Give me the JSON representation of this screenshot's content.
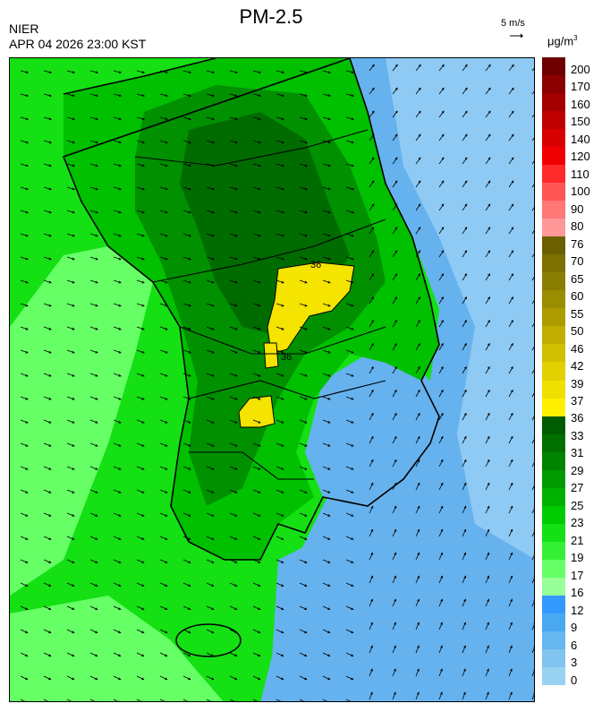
{
  "header": {
    "title": "PM-2.5",
    "agency": "NIER",
    "timestamp": "APR 04 2026 23:00 KST"
  },
  "wind_legend": {
    "label": "5 m/s",
    "icon": "wind-reference-arrow-icon"
  },
  "units": {
    "main": "μg/m",
    "exponent": "3"
  },
  "legend": {
    "labels": [
      "200",
      "170",
      "160",
      "150",
      "140",
      "120",
      "110",
      "100",
      "90",
      "80",
      "76",
      "70",
      "65",
      "60",
      "55",
      "50",
      "46",
      "42",
      "39",
      "37",
      "36",
      "33",
      "31",
      "29",
      "27",
      "25",
      "23",
      "21",
      "19",
      "17",
      "16",
      "12",
      "9",
      "6",
      "3",
      "0"
    ],
    "colors": [
      "#6e0000",
      "#8b0000",
      "#a40000",
      "#bf0000",
      "#d80000",
      "#f00000",
      "#ff2a2a",
      "#ff5555",
      "#ff7777",
      "#ff9999",
      "#6b6000",
      "#7b7000",
      "#8a7e00",
      "#9a8d00",
      "#ac9c00",
      "#bfad00",
      "#d0be00",
      "#e2d000",
      "#f0e000",
      "#fff000",
      "#005c00",
      "#007000",
      "#008400",
      "#009a00",
      "#00b200",
      "#00ca00",
      "#14e014",
      "#34f034",
      "#66ff66",
      "#99ff99",
      "#3399ff",
      "#4aa8f0",
      "#66b6f0",
      "#80c4f0",
      "#99d2f0"
    ]
  },
  "map": {
    "palette": {
      "sea_blue": "#66b2ee",
      "light_blue": "#8ecaf4",
      "mid_blue": "#4d9fe8",
      "green_light": "#66ff66",
      "green": "#14e014",
      "green_mid": "#00c000",
      "green_dark": "#009000",
      "green_darker": "#006c00",
      "yellow": "#f4e400",
      "coast": "#000000",
      "boundary": "#cccccc"
    },
    "contour_labels": [
      "36",
      "36"
    ]
  }
}
